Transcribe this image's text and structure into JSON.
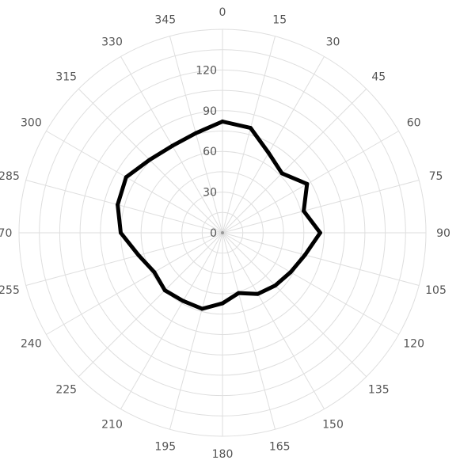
{
  "chart_data": {
    "type": "radar",
    "title": "",
    "angle_unit": "degrees",
    "angles": [
      0,
      15,
      30,
      45,
      60,
      75,
      90,
      105,
      120,
      135,
      150,
      165,
      180,
      195,
      210,
      225,
      240,
      255,
      270,
      285,
      300,
      315,
      330,
      345
    ],
    "angle_labels": [
      "0",
      "15",
      "30",
      "45",
      "60",
      "75",
      "90",
      "105",
      "120",
      "135",
      "150",
      "165",
      "180",
      "195",
      "210",
      "225",
      "240",
      "255",
      "270",
      "285",
      "300",
      "315",
      "330",
      "345"
    ],
    "radial_ticks": [
      0,
      30,
      60,
      90,
      120
    ],
    "radial_tick_labels": [
      "0",
      "30",
      "60",
      "90",
      "120"
    ],
    "rlim": [
      0,
      150
    ],
    "grid": true,
    "series": [
      {
        "values": [
          82,
          80,
          68,
          62,
          72,
          62,
          72,
          63,
          58,
          55,
          52,
          46,
          52,
          58,
          58,
          60,
          58,
          64,
          75,
          80,
          82,
          76,
          74,
          76
        ],
        "color": "#000000"
      }
    ]
  }
}
